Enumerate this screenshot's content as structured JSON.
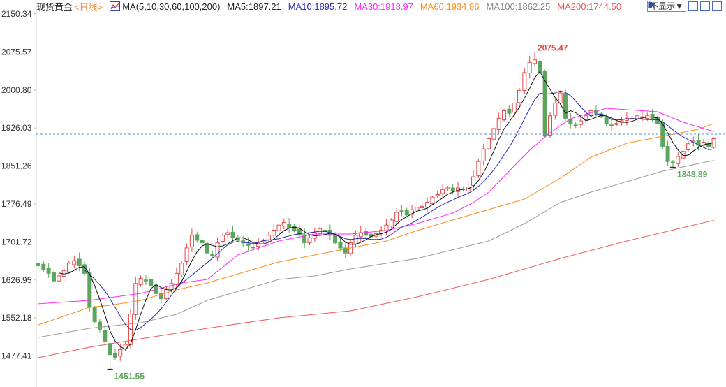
{
  "header": {
    "instrument": "现货黄金",
    "period": "<日线>",
    "ma_set": "MA(5,10,30,60,100,200)",
    "ma5": "MA5:1897.21",
    "ma10": "MA10:1895.72",
    "ma30": "MA30:1918.97",
    "ma60": "MA60:1934.86",
    "ma100": "MA100:1862.25",
    "ma200": "MA200:1744.50"
  },
  "toolbar": {
    "hide_label": "不显示▼",
    "icons": [
      "crosshair-icon",
      "zoom-fit-icon",
      "play-icon"
    ]
  },
  "colors": {
    "up": "#e34a4a",
    "down": "#5ca55c",
    "ma5": "#111111",
    "ma10": "#2a2ab8",
    "ma30": "#ff2bff",
    "ma60": "#ff8c1a",
    "ma100": "#9a9a9a",
    "ma200": "#ef5b5b",
    "price_line": "#4a90e2"
  },
  "chart_data": {
    "type": "candlestick",
    "title": "现货黄金 <日线>",
    "ylim": [
      1440,
      2160
    ],
    "yticks": [
      "2150.34",
      "2075.57",
      "2000.80",
      "1926.03",
      "1851.26",
      "1776.49",
      "1701.72",
      "1626.95",
      "1552.18",
      "1477.41"
    ],
    "close": [
      1655,
      1648,
      1640,
      1625,
      1635,
      1645,
      1660,
      1665,
      1655,
      1640,
      1573,
      1545,
      1530,
      1505,
      1480,
      1475,
      1490,
      1500,
      1560,
      1620,
      1630,
      1625,
      1615,
      1600,
      1590,
      1610,
      1620,
      1640,
      1660,
      1690,
      1715,
      1705,
      1700,
      1680,
      1675,
      1700,
      1715,
      1720,
      1710,
      1705,
      1700,
      1695,
      1690,
      1700,
      1705,
      1715,
      1725,
      1735,
      1740,
      1730,
      1725,
      1715,
      1700,
      1710,
      1720,
      1728,
      1722,
      1715,
      1700,
      1690,
      1680,
      1700,
      1715,
      1720,
      1715,
      1712,
      1718,
      1725,
      1735,
      1745,
      1760,
      1762,
      1755,
      1765,
      1770,
      1772,
      1780,
      1790,
      1795,
      1805,
      1808,
      1802,
      1808,
      1805,
      1810,
      1830,
      1860,
      1885,
      1905,
      1925,
      1945,
      1960,
      1955,
      1975,
      2000,
      2035,
      2055,
      2060,
      2035,
      1910,
      1950,
      1975,
      1995,
      1945,
      1935,
      1930,
      1940,
      1950,
      1960,
      1955,
      1948,
      1935,
      1930,
      1935,
      1940,
      1945,
      1945,
      1950,
      1948,
      1950,
      1945,
      1935,
      1890,
      1860,
      1858,
      1870,
      1880,
      1895,
      1900,
      1892,
      1898,
      1890,
      1905
    ],
    "ma_long": {
      "ma30": [
        [
          0,
          1580
        ],
        [
          10,
          1586.8
        ],
        [
          20,
          1600.5
        ],
        [
          28,
          1621.2
        ],
        [
          33,
          1628
        ],
        [
          39,
          1676.1
        ],
        [
          47,
          1703.6
        ],
        [
          54,
          1717.4
        ],
        [
          61,
          1717.4
        ],
        [
          68,
          1724.2
        ],
        [
          74,
          1738
        ],
        [
          81,
          1758.6
        ],
        [
          85,
          1779.2
        ],
        [
          88,
          1799.9
        ],
        [
          92,
          1841.1
        ],
        [
          96,
          1882.3
        ],
        [
          100,
          1916.7
        ],
        [
          104,
          1944.2
        ],
        [
          111,
          1964.8
        ],
        [
          121,
          1957.9
        ],
        [
          126,
          1937.3
        ],
        [
          132,
          1918.97
        ]
      ],
      "ma60": [
        [
          0,
          1538.7
        ],
        [
          10,
          1573
        ],
        [
          14,
          1577.2
        ],
        [
          20,
          1586.8
        ],
        [
          27,
          1607.4
        ],
        [
          33,
          1621.2
        ],
        [
          40,
          1641.8
        ],
        [
          47,
          1662.4
        ],
        [
          54,
          1676.1
        ],
        [
          61,
          1689.9
        ],
        [
          68,
          1703.6
        ],
        [
          74,
          1724.2
        ],
        [
          81,
          1744.9
        ],
        [
          88,
          1765.5
        ],
        [
          95,
          1786.1
        ],
        [
          102,
          1827.3
        ],
        [
          108,
          1868.6
        ],
        [
          115,
          1896.1
        ],
        [
          122,
          1909.8
        ],
        [
          129,
          1923.5
        ],
        [
          132,
          1934.86
        ]
      ],
      "ma100": [
        [
          0,
          1514
        ],
        [
          10,
          1531.8
        ],
        [
          20,
          1542.8
        ],
        [
          27,
          1559.3
        ],
        [
          33,
          1586.8
        ],
        [
          40,
          1607.4
        ],
        [
          47,
          1628
        ],
        [
          54,
          1634.9
        ],
        [
          61,
          1648.6
        ],
        [
          74,
          1669.2
        ],
        [
          88,
          1703.6
        ],
        [
          95,
          1738
        ],
        [
          102,
          1779.2
        ],
        [
          108,
          1799.9
        ],
        [
          115,
          1820.5
        ],
        [
          122,
          1841.1
        ],
        [
          132,
          1862.25
        ]
      ],
      "ma200": [
        [
          0,
          1474.1
        ],
        [
          10,
          1494.7
        ],
        [
          20,
          1511.2
        ],
        [
          33,
          1531.8
        ],
        [
          47,
          1552.4
        ],
        [
          61,
          1566.2
        ],
        [
          74,
          1593.7
        ],
        [
          88,
          1628
        ],
        [
          102,
          1669.2
        ],
        [
          115,
          1703.6
        ],
        [
          132,
          1744.5
        ]
      ]
    },
    "last_price": 1914,
    "annotations": [
      {
        "label": "2075.47",
        "index": 97,
        "value": 2075.47,
        "kind": "high"
      },
      {
        "label": "1451.55",
        "index": 14,
        "value": 1451.55,
        "kind": "low"
      },
      {
        "label": "1848.89",
        "index": 124,
        "value": 1848.89,
        "kind": "low"
      }
    ]
  }
}
